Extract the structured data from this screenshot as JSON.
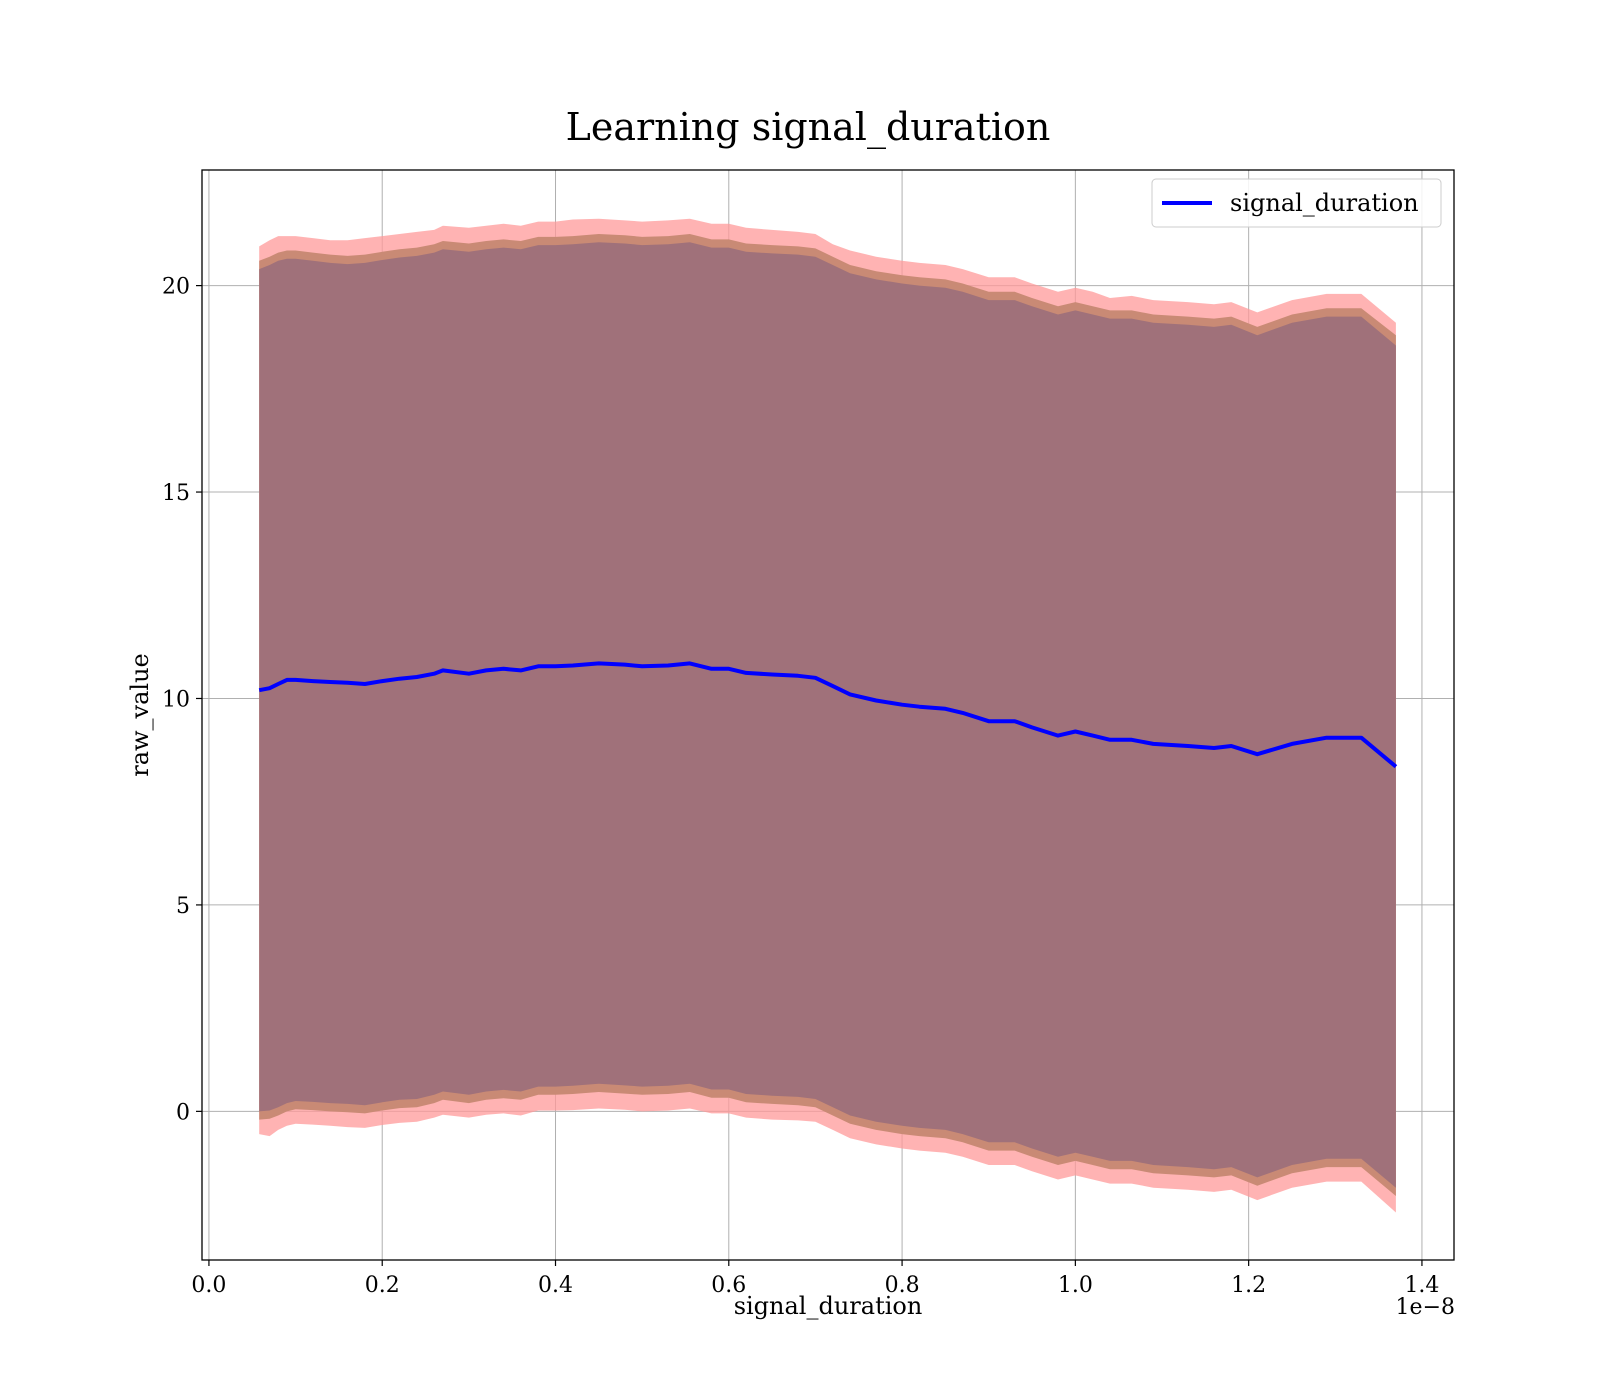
{
  "chart_data": {
    "type": "line",
    "title": "Learning signal_duration",
    "xlabel": "signal_duration",
    "ylabel": "raw_value",
    "x_offset_label": "1e−8",
    "xlim": [
      -0.008,
      1.437
    ],
    "ylim": [
      -3.6,
      22.8
    ],
    "x_ticks": [
      0.0,
      0.2,
      0.4,
      0.6,
      0.8,
      1.0,
      1.2,
      1.4
    ],
    "x_tick_labels": [
      "0.0",
      "0.2",
      "0.4",
      "0.6",
      "0.8",
      "1.0",
      "1.2",
      "1.4"
    ],
    "y_ticks": [
      0,
      5,
      10,
      15,
      20
    ],
    "y_tick_labels": [
      "0",
      "5",
      "10",
      "15",
      "20"
    ],
    "grid": true,
    "legend": {
      "position": "top-right",
      "entries": [
        "signal_duration"
      ]
    },
    "colors": {
      "line": "#0000ff",
      "outer_band": "#ff9999",
      "middle_band": "#c98a75",
      "inner_band": "#a0717a"
    },
    "series": [
      {
        "name": "signal_duration",
        "x": [
          0.058,
          0.07,
          0.08,
          0.09,
          0.1,
          0.12,
          0.14,
          0.16,
          0.18,
          0.2,
          0.22,
          0.24,
          0.26,
          0.27,
          0.3,
          0.32,
          0.34,
          0.36,
          0.38,
          0.4,
          0.42,
          0.45,
          0.48,
          0.5,
          0.53,
          0.555,
          0.58,
          0.6,
          0.62,
          0.65,
          0.68,
          0.7,
          0.72,
          0.74,
          0.77,
          0.8,
          0.82,
          0.85,
          0.87,
          0.9,
          0.93,
          0.95,
          0.98,
          1.0,
          1.02,
          1.04,
          1.065,
          1.09,
          1.13,
          1.16,
          1.18,
          1.21,
          1.25,
          1.29,
          1.33,
          1.37
        ],
        "values": [
          10.2,
          10.25,
          10.35,
          10.45,
          10.45,
          10.42,
          10.4,
          10.38,
          10.35,
          10.42,
          10.48,
          10.52,
          10.6,
          10.68,
          10.6,
          10.68,
          10.72,
          10.68,
          10.78,
          10.78,
          10.8,
          10.85,
          10.82,
          10.78,
          10.8,
          10.85,
          10.72,
          10.72,
          10.62,
          10.58,
          10.55,
          10.5,
          10.3,
          10.1,
          9.95,
          9.85,
          9.8,
          9.75,
          9.65,
          9.45,
          9.45,
          9.3,
          9.1,
          9.2,
          9.1,
          9.0,
          9.0,
          8.9,
          8.85,
          8.8,
          8.85,
          8.65,
          8.9,
          9.05,
          9.05,
          8.35
        ],
        "outer_upper": [
          20.95,
          21.1,
          21.2,
          21.2,
          21.2,
          21.15,
          21.1,
          21.1,
          21.15,
          21.2,
          21.25,
          21.3,
          21.35,
          21.45,
          21.4,
          21.45,
          21.5,
          21.45,
          21.55,
          21.55,
          21.6,
          21.62,
          21.58,
          21.55,
          21.58,
          21.62,
          21.5,
          21.5,
          21.4,
          21.35,
          21.3,
          21.25,
          21.0,
          20.85,
          20.7,
          20.6,
          20.55,
          20.5,
          20.4,
          20.2,
          20.2,
          20.05,
          19.85,
          19.95,
          19.85,
          19.7,
          19.75,
          19.65,
          19.6,
          19.55,
          19.6,
          19.35,
          19.65,
          19.8,
          19.8,
          19.1
        ],
        "middle_upper": [
          20.6,
          20.7,
          20.8,
          20.85,
          20.85,
          20.8,
          20.75,
          20.72,
          20.75,
          20.82,
          20.88,
          20.92,
          21.0,
          21.08,
          21.02,
          21.08,
          21.12,
          21.08,
          21.18,
          21.18,
          21.2,
          21.25,
          21.22,
          21.18,
          21.2,
          21.25,
          21.12,
          21.12,
          21.02,
          20.98,
          20.95,
          20.9,
          20.7,
          20.5,
          20.35,
          20.25,
          20.2,
          20.15,
          20.05,
          19.85,
          19.85,
          19.7,
          19.5,
          19.6,
          19.5,
          19.4,
          19.4,
          19.3,
          19.25,
          19.2,
          19.25,
          19.0,
          19.3,
          19.45,
          19.45,
          18.8
        ],
        "middle_lower": [
          -0.2,
          -0.18,
          -0.1,
          0.0,
          0.05,
          0.03,
          0.0,
          -0.02,
          -0.05,
          0.02,
          0.08,
          0.1,
          0.2,
          0.28,
          0.2,
          0.28,
          0.32,
          0.28,
          0.4,
          0.4,
          0.42,
          0.47,
          0.43,
          0.4,
          0.42,
          0.47,
          0.33,
          0.33,
          0.22,
          0.18,
          0.15,
          0.1,
          -0.1,
          -0.3,
          -0.45,
          -0.55,
          -0.6,
          -0.65,
          -0.75,
          -0.95,
          -0.95,
          -1.1,
          -1.3,
          -1.2,
          -1.3,
          -1.4,
          -1.4,
          -1.5,
          -1.55,
          -1.6,
          -1.55,
          -1.8,
          -1.5,
          -1.35,
          -1.35,
          -2.05
        ],
        "outer_lower": [
          -0.55,
          -0.6,
          -0.45,
          -0.35,
          -0.3,
          -0.32,
          -0.35,
          -0.38,
          -0.4,
          -0.33,
          -0.28,
          -0.25,
          -0.15,
          -0.08,
          -0.15,
          -0.08,
          -0.05,
          -0.1,
          0.02,
          0.02,
          0.03,
          0.07,
          0.04,
          0.0,
          0.02,
          0.07,
          -0.05,
          -0.05,
          -0.15,
          -0.2,
          -0.22,
          -0.25,
          -0.45,
          -0.65,
          -0.8,
          -0.9,
          -0.95,
          -1.0,
          -1.1,
          -1.3,
          -1.3,
          -1.45,
          -1.65,
          -1.55,
          -1.65,
          -1.75,
          -1.75,
          -1.85,
          -1.9,
          -1.95,
          -1.9,
          -2.15,
          -1.85,
          -1.7,
          -1.7,
          -2.45
        ],
        "inner_upper": [
          20.4,
          20.5,
          20.6,
          20.65,
          20.65,
          20.6,
          20.55,
          20.52,
          20.55,
          20.62,
          20.68,
          20.72,
          20.8,
          20.88,
          20.82,
          20.88,
          20.92,
          20.88,
          20.98,
          20.98,
          21.0,
          21.05,
          21.02,
          20.98,
          21.0,
          21.05,
          20.92,
          20.92,
          20.82,
          20.78,
          20.75,
          20.7,
          20.5,
          20.3,
          20.15,
          20.05,
          20.0,
          19.95,
          19.85,
          19.65,
          19.65,
          19.5,
          19.3,
          19.4,
          19.3,
          19.2,
          19.2,
          19.1,
          19.05,
          19.0,
          19.05,
          18.8,
          19.1,
          19.25,
          19.25,
          18.55
        ],
        "inner_lower": [
          0.0,
          0.02,
          0.1,
          0.2,
          0.25,
          0.23,
          0.2,
          0.18,
          0.15,
          0.22,
          0.28,
          0.3,
          0.4,
          0.48,
          0.4,
          0.48,
          0.52,
          0.48,
          0.6,
          0.6,
          0.62,
          0.67,
          0.63,
          0.6,
          0.62,
          0.67,
          0.53,
          0.53,
          0.42,
          0.38,
          0.35,
          0.3,
          0.1,
          -0.1,
          -0.25,
          -0.35,
          -0.4,
          -0.45,
          -0.55,
          -0.75,
          -0.75,
          -0.9,
          -1.1,
          -1.0,
          -1.1,
          -1.2,
          -1.2,
          -1.3,
          -1.35,
          -1.4,
          -1.35,
          -1.6,
          -1.3,
          -1.15,
          -1.15,
          -1.85
        ]
      }
    ]
  }
}
